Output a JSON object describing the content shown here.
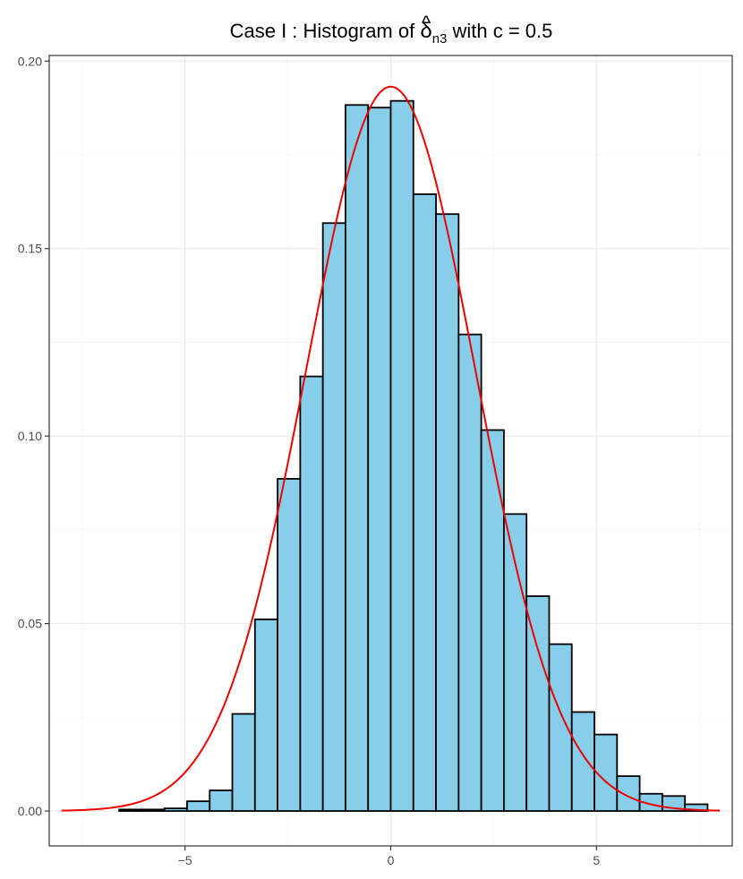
{
  "chart_data": {
    "type": "bar",
    "title": {
      "prefix": "Case I :  Histogram of ",
      "symbol": "δ",
      "hat": "^",
      "subscript": "n3",
      "suffix": " with c = 0.5"
    },
    "xlabel": "",
    "ylabel": "",
    "xlim": [
      -8.3,
      8.3
    ],
    "ylim": [
      -0.0093,
      0.2015
    ],
    "x_ticks": [
      -5,
      0,
      5
    ],
    "x_tick_labels": [
      "−5",
      "0",
      "5"
    ],
    "y_ticks": [
      0,
      0.05,
      0.1,
      0.15,
      0.2
    ],
    "y_tick_labels": [
      "0.00",
      "0.05",
      "0.10",
      "0.15",
      "0.20"
    ],
    "grid": true,
    "legend": "none",
    "bin_width": 0.55,
    "bins": [
      {
        "x0": -6.6,
        "x1": -6.05,
        "density": 0.0004
      },
      {
        "x0": -6.05,
        "x1": -5.5,
        "density": 0.0004
      },
      {
        "x0": -5.5,
        "x1": -4.95,
        "density": 0.0007
      },
      {
        "x0": -4.95,
        "x1": -4.4,
        "density": 0.0026
      },
      {
        "x0": -4.4,
        "x1": -3.85,
        "density": 0.0055
      },
      {
        "x0": -3.85,
        "x1": -3.3,
        "density": 0.0259
      },
      {
        "x0": -3.3,
        "x1": -2.75,
        "density": 0.0511
      },
      {
        "x0": -2.75,
        "x1": -2.2,
        "density": 0.0886
      },
      {
        "x0": -2.2,
        "x1": -1.65,
        "density": 0.1159
      },
      {
        "x0": -1.65,
        "x1": -1.1,
        "density": 0.1568
      },
      {
        "x0": -1.1,
        "x1": -0.55,
        "density": 0.1883
      },
      {
        "x0": -0.55,
        "x1": 0.0,
        "density": 0.1876
      },
      {
        "x0": 0.0,
        "x1": 0.55,
        "density": 0.1894
      },
      {
        "x0": 0.55,
        "x1": 1.1,
        "density": 0.1645
      },
      {
        "x0": 1.1,
        "x1": 1.65,
        "density": 0.1592
      },
      {
        "x0": 1.65,
        "x1": 2.2,
        "density": 0.1271
      },
      {
        "x0": 2.2,
        "x1": 2.75,
        "density": 0.1016
      },
      {
        "x0": 2.75,
        "x1": 3.3,
        "density": 0.0792
      },
      {
        "x0": 3.3,
        "x1": 3.85,
        "density": 0.0573
      },
      {
        "x0": 3.85,
        "x1": 4.4,
        "density": 0.0445
      },
      {
        "x0": 4.4,
        "x1": 4.95,
        "density": 0.0264
      },
      {
        "x0": 4.95,
        "x1": 5.5,
        "density": 0.0204
      },
      {
        "x0": 5.5,
        "x1": 6.05,
        "density": 0.0093
      },
      {
        "x0": 6.05,
        "x1": 6.6,
        "density": 0.0046
      },
      {
        "x0": 6.6,
        "x1": 7.15,
        "density": 0.004
      },
      {
        "x0": 7.15,
        "x1": 7.7,
        "density": 0.0018
      }
    ],
    "density_curve": {
      "distribution": "normal",
      "mean": 0.0,
      "sd": 2.065,
      "x_range": [
        -8,
        8
      ]
    },
    "colors": {
      "bar_fill": "#87ceeb",
      "bar_stroke": "#000000",
      "curve": "#ee0000",
      "grid_major": "#ebebeb",
      "grid_minor": "#f5f5f5",
      "panel_border": "#333333",
      "tick_text": "#4d4d4d"
    }
  }
}
